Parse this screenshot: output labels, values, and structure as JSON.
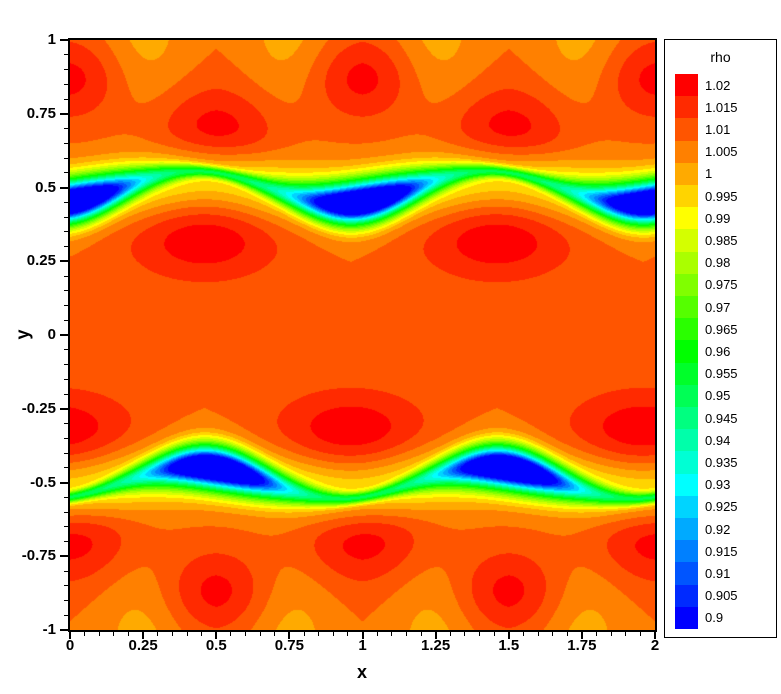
{
  "chart_data": {
    "type": "heatmap",
    "subtype": "filled-contour",
    "title": "",
    "xlabel": "x",
    "ylabel": "y",
    "xlim": [
      0,
      2
    ],
    "ylim": [
      -1,
      1
    ],
    "grid": false,
    "x_major_ticks": [
      0,
      0.25,
      0.5,
      0.75,
      1,
      1.25,
      1.5,
      1.75,
      2
    ],
    "x_tick_labels": [
      "0",
      "0.25",
      "0.5",
      "0.75",
      "1",
      "1.25",
      "1.5",
      "1.75",
      "2"
    ],
    "y_major_ticks": [
      1,
      0.75,
      0.5,
      0.25,
      0,
      -0.25,
      -0.5,
      -0.75,
      -1
    ],
    "y_tick_labels": [
      "1",
      "0.75",
      "0.5",
      "0.25",
      "0",
      "-0.25",
      "-0.5",
      "-0.75",
      "-1"
    ],
    "minor_tick_spacing": 0.05,
    "value_range": [
      0.9,
      1.02
    ],
    "contour_step": 0.005,
    "axis_color": "#000000",
    "legend": {
      "title": "rho",
      "position": "right",
      "levels": [
        {
          "label": "1.02",
          "value": 1.02,
          "color": "#FF0000"
        },
        {
          "label": "1.015",
          "value": 1.015,
          "color": "#FF2A00"
        },
        {
          "label": "1.01",
          "value": 1.01,
          "color": "#FF5500"
        },
        {
          "label": "1.005",
          "value": 1.005,
          "color": "#FF8000"
        },
        {
          "label": "1",
          "value": 1.0,
          "color": "#FFAA00"
        },
        {
          "label": "0.995",
          "value": 0.995,
          "color": "#FFD400"
        },
        {
          "label": "0.99",
          "value": 0.99,
          "color": "#FFFF00"
        },
        {
          "label": "0.985",
          "value": 0.985,
          "color": "#D4FF00"
        },
        {
          "label": "0.98",
          "value": 0.98,
          "color": "#AAFF00"
        },
        {
          "label": "0.975",
          "value": 0.975,
          "color": "#80FF00"
        },
        {
          "label": "0.97",
          "value": 0.97,
          "color": "#55FF00"
        },
        {
          "label": "0.965",
          "value": 0.965,
          "color": "#2AFF00"
        },
        {
          "label": "0.96",
          "value": 0.96,
          "color": "#00FF00"
        },
        {
          "label": "0.955",
          "value": 0.955,
          "color": "#00FF2A"
        },
        {
          "label": "0.95",
          "value": 0.95,
          "color": "#00FF55"
        },
        {
          "label": "0.945",
          "value": 0.945,
          "color": "#00FF80"
        },
        {
          "label": "0.94",
          "value": 0.94,
          "color": "#00FFAA"
        },
        {
          "label": "0.935",
          "value": 0.935,
          "color": "#00FFD4"
        },
        {
          "label": "0.93",
          "value": 0.93,
          "color": "#00FFFF"
        },
        {
          "label": "0.925",
          "value": 0.925,
          "color": "#00D4FF"
        },
        {
          "label": "0.92",
          "value": 0.92,
          "color": "#00AAFF"
        },
        {
          "label": "0.915",
          "value": 0.915,
          "color": "#0080FF"
        },
        {
          "label": "0.91",
          "value": 0.91,
          "color": "#0055FF"
        },
        {
          "label": "0.905",
          "value": 0.905,
          "color": "#002AFF"
        },
        {
          "label": "0.9",
          "value": 0.9,
          "color": "#0000FF"
        }
      ]
    },
    "field_model": {
      "base": 1.0075,
      "shear_layers": [
        {
          "x_shift": 0.0,
          "flip_y": false,
          "y_center": 0.5,
          "wave_amp": 0.05,
          "tilt_amp": 0.025,
          "braid_amp": 0.045,
          "core_amp": 0.085,
          "core_exponent": 2.5,
          "braid_sigma_y": 0.013,
          "core_sigma_y": 0.035,
          "halo_amp": 0.02,
          "halo_sigma_y": 0.075,
          "halo_wave_amp": 0.033
        },
        {
          "x_shift": 0.5,
          "flip_y": true,
          "y_center": 0.5,
          "wave_amp": 0.05,
          "tilt_amp": 0.025,
          "braid_amp": 0.045,
          "core_amp": 0.085,
          "core_exponent": 2.5,
          "braid_sigma_y": 0.013,
          "core_sigma_y": 0.035,
          "halo_amp": 0.02,
          "halo_sigma_y": 0.075,
          "halo_wave_amp": 0.033
        }
      ],
      "bumps": [
        {
          "amp": 0.0135,
          "x_center": 0.5,
          "x_period": 1.0,
          "y_center": 0.68,
          "sigma_x": 0.17,
          "sigma_y": 0.115
        },
        {
          "amp": 0.0135,
          "x_center": 0.46,
          "x_period": 1.0,
          "y_center": 0.32,
          "sigma_x": 0.19,
          "sigma_y": 0.1
        },
        {
          "amp": 0.012,
          "x_center": 0.0,
          "x_period": 1.0,
          "y_center": 0.87,
          "sigma_x": 0.14,
          "sigma_y": 0.1
        },
        {
          "amp": -0.0075,
          "x_center": 0.25,
          "x_period": 0.5,
          "y_center": 1.0,
          "sigma_x": 0.11,
          "sigma_y": 0.22
        }
      ],
      "mirror_bumps": {
        "x_shift": 0.5,
        "flip_y": true
      }
    }
  }
}
